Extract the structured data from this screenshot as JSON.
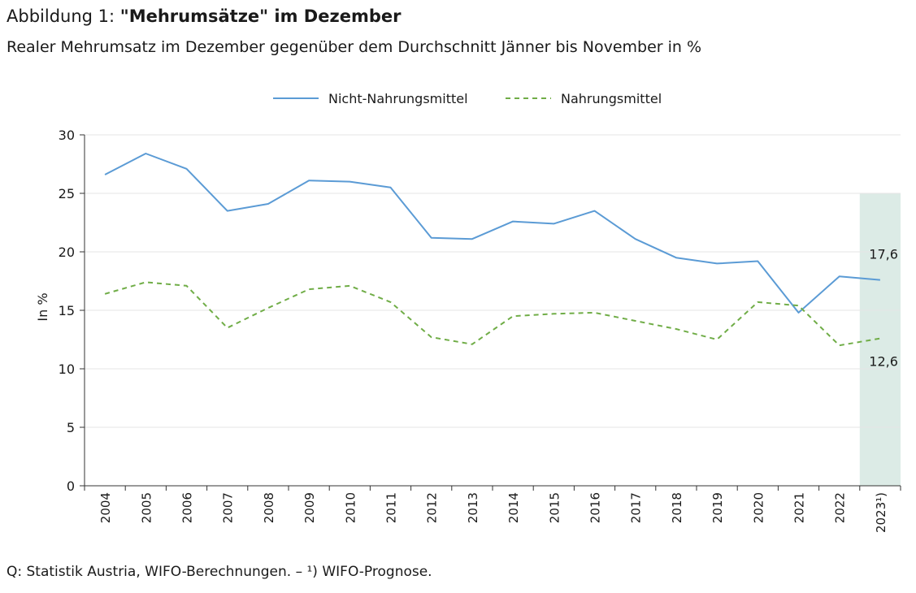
{
  "header": {
    "title_prefix": "Abbildung 1: ",
    "title_bold": "\"Mehrumsätze\" im Dezember",
    "subtitle": "Realer Mehrumsatz im Dezember gegenüber dem Durchschnitt Jänner bis November in %"
  },
  "footer": {
    "source": "Q: Statistik Austria, WIFO-Berechnungen. – ¹) WIFO-Prognose."
  },
  "chart_data": {
    "type": "line",
    "title": "",
    "xlabel": "",
    "ylabel": "In %",
    "ylim": [
      0,
      30
    ],
    "yticks": [
      "0",
      "5",
      "10",
      "15",
      "20",
      "25",
      "30"
    ],
    "grid": true,
    "legend_position": "top-center",
    "categories": [
      "2004",
      "2005",
      "2006",
      "2007",
      "2008",
      "2009",
      "2010",
      "2011",
      "2012",
      "2013",
      "2014",
      "2015",
      "2016",
      "2017",
      "2018",
      "2019",
      "2020",
      "2021",
      "2022",
      "2023¹)"
    ],
    "series": [
      {
        "name": "Nicht-Nahrungsmittel",
        "color": "#5b9bd5",
        "dash": "solid",
        "values": [
          26.6,
          28.4,
          27.1,
          23.5,
          24.1,
          26.1,
          26.0,
          25.5,
          21.2,
          21.1,
          22.6,
          22.4,
          23.5,
          21.1,
          19.5,
          19.0,
          19.2,
          14.8,
          17.9,
          17.6
        ],
        "end_label": "17,6"
      },
      {
        "name": "Nahrungsmittel",
        "color": "#70ad47",
        "dash": "dashed",
        "values": [
          16.4,
          17.4,
          17.1,
          13.5,
          15.2,
          16.8,
          17.1,
          15.7,
          12.7,
          12.1,
          14.5,
          14.7,
          14.8,
          14.1,
          13.4,
          12.5,
          15.7,
          15.4,
          12.0,
          12.6
        ],
        "end_label": "12,6"
      }
    ],
    "forecast_shading": {
      "category": "2023¹)",
      "from": 0,
      "to": 25,
      "color": "#dcebe6"
    }
  }
}
